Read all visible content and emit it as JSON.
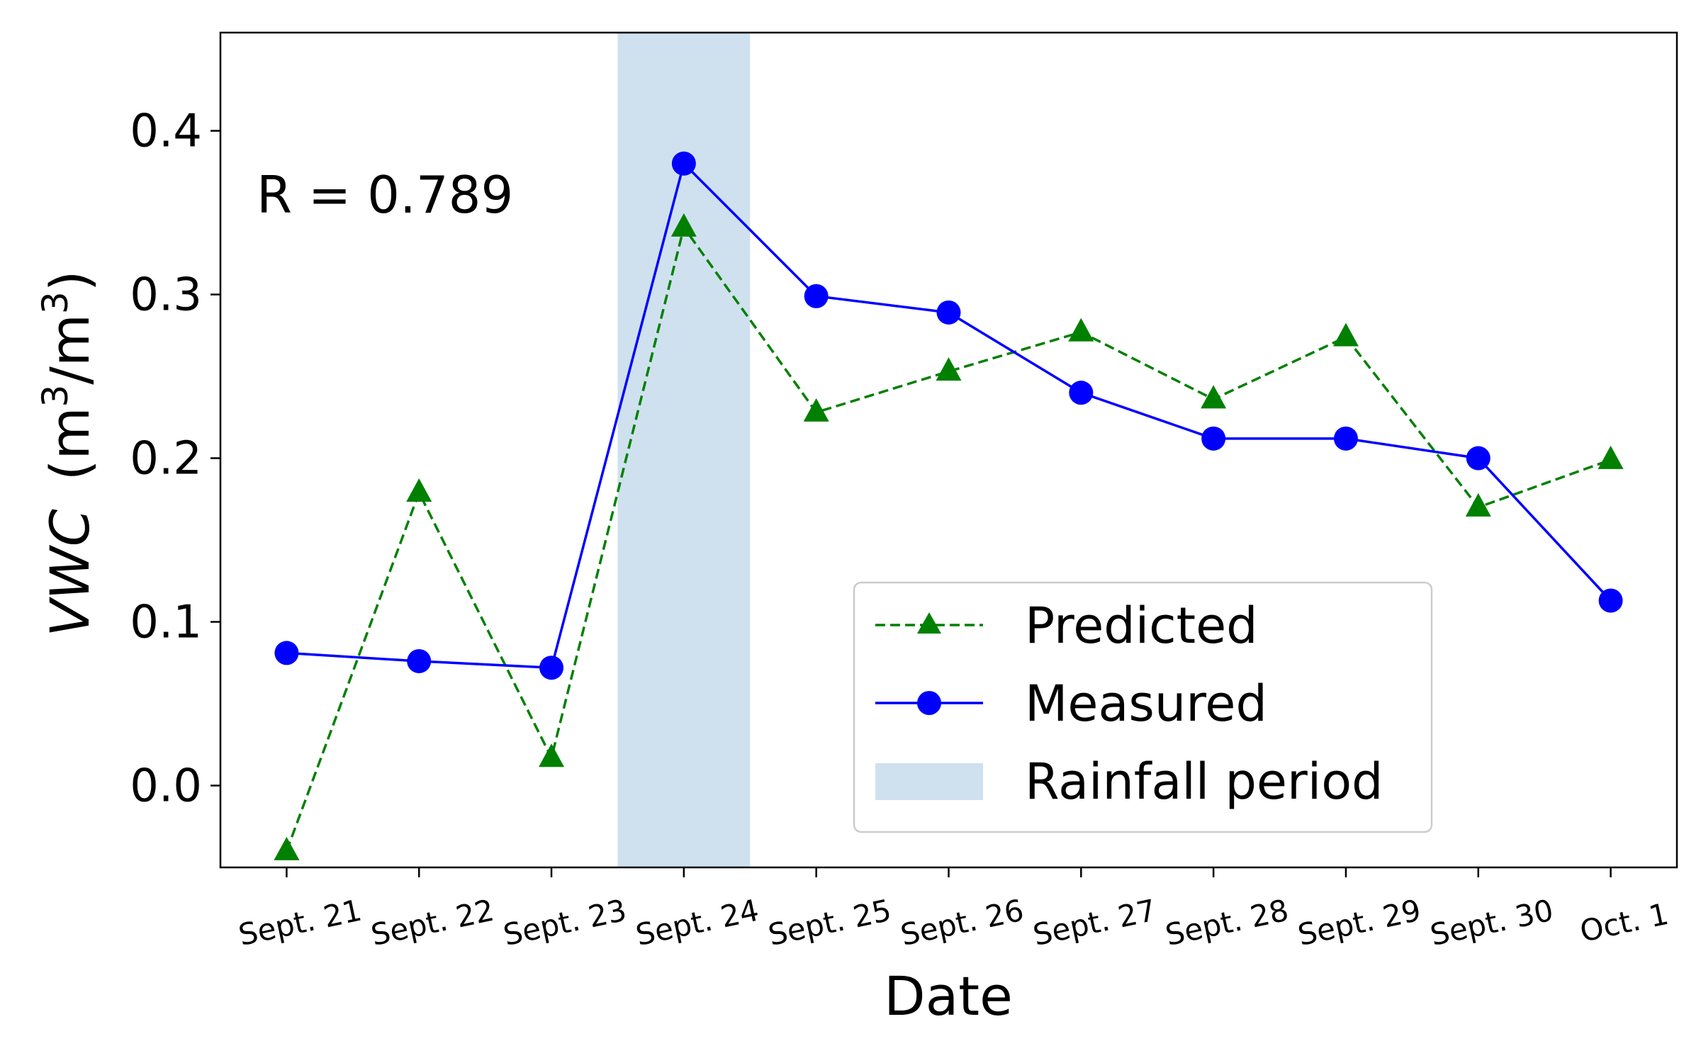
{
  "chart_data": {
    "type": "line",
    "categories": [
      "Sept. 21",
      "Sept. 22",
      "Sept. 23",
      "Sept. 24",
      "Sept. 25",
      "Sept. 26",
      "Sept. 27",
      "Sept. 28",
      "Sept. 29",
      "Sept. 30",
      "Oct. 1"
    ],
    "series": [
      {
        "name": "Predicted",
        "color": "#008000",
        "style": "dashed",
        "marker": "triangle",
        "values": [
          -0.04,
          0.179,
          0.017,
          0.341,
          0.228,
          0.253,
          0.277,
          0.236,
          0.274,
          0.17,
          0.199
        ]
      },
      {
        "name": "Measured",
        "color": "#0000ff",
        "style": "solid",
        "marker": "circle",
        "values": [
          0.081,
          0.076,
          0.072,
          0.38,
          0.299,
          0.289,
          0.24,
          0.212,
          0.212,
          0.2,
          0.113
        ]
      }
    ],
    "shaded_region": {
      "name": "Rainfall period",
      "x_start": 2.5,
      "x_end": 3.5,
      "color": "#cfe1ee"
    },
    "annotation": "R = 0.789",
    "xlabel": "Date",
    "ylabel_main": "VWC",
    "ylabel_unit_open": "(m",
    "ylabel_sup1": "3",
    "ylabel_unit_mid": "/m",
    "ylabel_sup2": "3",
    "ylabel_unit_close": ")",
    "ylim": [
      -0.05,
      0.46
    ],
    "xlim": [
      -0.5,
      10.5
    ],
    "yticks": [
      0.0,
      0.1,
      0.2,
      0.3,
      0.4
    ],
    "ytick_labels": [
      "0.0",
      "0.1",
      "0.2",
      "0.3",
      "0.4"
    ],
    "legend": {
      "position": "lower-right",
      "entries": [
        "Predicted",
        "Measured",
        "Rainfall period"
      ]
    }
  }
}
